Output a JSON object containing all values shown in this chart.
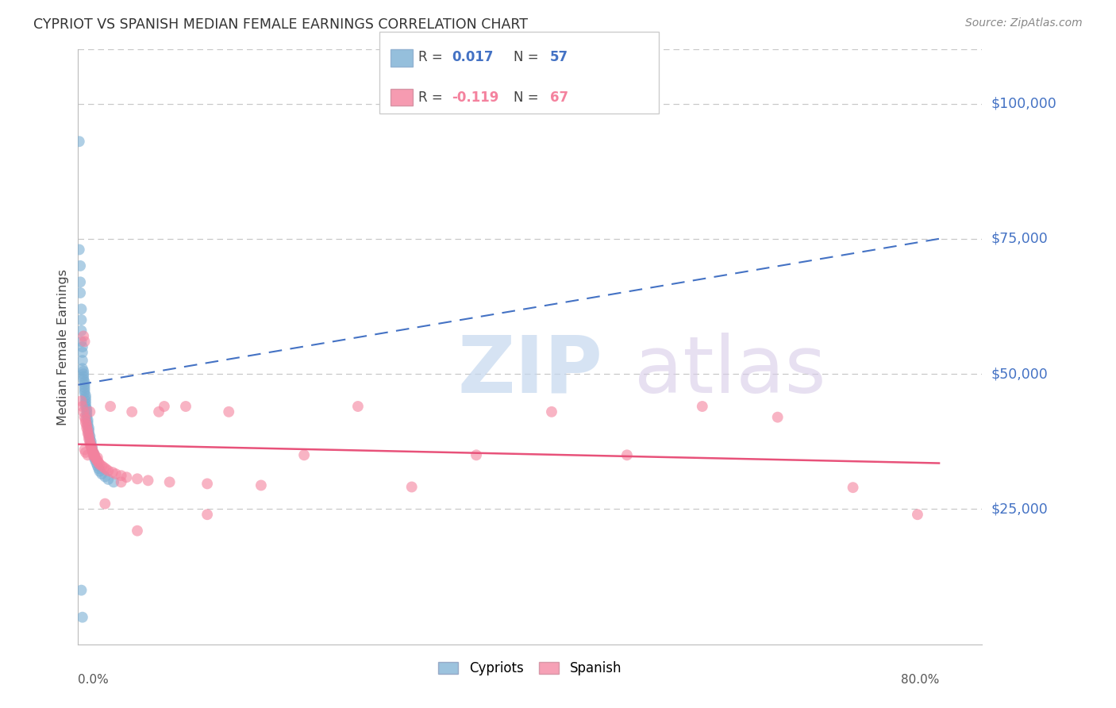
{
  "title": "CYPRIOT VS SPANISH MEDIAN FEMALE EARNINGS CORRELATION CHART",
  "source": "Source: ZipAtlas.com",
  "ylabel": "Median Female Earnings",
  "xlim": [
    0.0,
    0.84
  ],
  "ylim": [
    0,
    110000
  ],
  "x_tick_positions": [
    0.0,
    0.2,
    0.4,
    0.6,
    0.8
  ],
  "y_ticks": [
    25000,
    50000,
    75000,
    100000
  ],
  "y_tick_labels": [
    "$25,000",
    "$50,000",
    "$75,000",
    "$100,000"
  ],
  "y_tick_color": "#4472c4",
  "background_color": "#ffffff",
  "grid_color": "#c8c8c8",
  "cypriot_color": "#7bafd4",
  "spanish_color": "#f4829e",
  "scatter_size": 100,
  "cypriot_scatter_alpha": 0.6,
  "spanish_scatter_alpha": 0.6,
  "trend_blue_color": "#4472c4",
  "trend_pink_color": "#e8527a",
  "cypriot_R": 0.017,
  "cypriot_N": 57,
  "spanish_R": -0.119,
  "spanish_N": 67,
  "cyp_x": [
    0.001,
    0.001,
    0.002,
    0.002,
    0.002,
    0.003,
    0.003,
    0.003,
    0.003,
    0.004,
    0.004,
    0.004,
    0.004,
    0.005,
    0.005,
    0.005,
    0.005,
    0.006,
    0.006,
    0.006,
    0.006,
    0.006,
    0.007,
    0.007,
    0.007,
    0.007,
    0.007,
    0.008,
    0.008,
    0.008,
    0.008,
    0.009,
    0.009,
    0.009,
    0.01,
    0.01,
    0.01,
    0.011,
    0.011,
    0.012,
    0.012,
    0.013,
    0.013,
    0.014,
    0.015,
    0.015,
    0.016,
    0.017,
    0.018,
    0.019,
    0.02,
    0.022,
    0.025,
    0.028,
    0.033,
    0.003,
    0.004
  ],
  "cyp_y": [
    93000,
    73000,
    70000,
    67000,
    65000,
    62000,
    60000,
    58000,
    56000,
    55000,
    54000,
    52500,
    51000,
    50500,
    50000,
    49500,
    49000,
    48500,
    48000,
    47500,
    47000,
    46500,
    46000,
    45500,
    45000,
    44500,
    44000,
    43500,
    43000,
    42500,
    42000,
    41500,
    41000,
    40500,
    40000,
    39500,
    39000,
    38500,
    38000,
    37500,
    37000,
    36500,
    36000,
    35500,
    35000,
    34500,
    34000,
    33500,
    33000,
    32500,
    32000,
    31500,
    31000,
    30500,
    30000,
    10000,
    5000
  ],
  "spa_x": [
    0.003,
    0.004,
    0.005,
    0.005,
    0.006,
    0.006,
    0.007,
    0.007,
    0.008,
    0.008,
    0.009,
    0.009,
    0.01,
    0.01,
    0.011,
    0.011,
    0.012,
    0.012,
    0.013,
    0.013,
    0.014,
    0.015,
    0.015,
    0.016,
    0.017,
    0.018,
    0.019,
    0.02,
    0.022,
    0.024,
    0.026,
    0.028,
    0.03,
    0.032,
    0.035,
    0.04,
    0.045,
    0.05,
    0.055,
    0.065,
    0.075,
    0.085,
    0.1,
    0.12,
    0.14,
    0.17,
    0.21,
    0.26,
    0.31,
    0.37,
    0.44,
    0.51,
    0.58,
    0.65,
    0.72,
    0.78,
    0.006,
    0.007,
    0.009,
    0.011,
    0.014,
    0.018,
    0.025,
    0.04,
    0.055,
    0.08,
    0.12
  ],
  "spa_y": [
    45000,
    44000,
    57000,
    43000,
    56000,
    42000,
    41500,
    41000,
    40500,
    40000,
    39500,
    39000,
    38500,
    38000,
    37500,
    37000,
    36800,
    36500,
    36200,
    35900,
    35500,
    35200,
    34900,
    34500,
    34200,
    33900,
    33600,
    33300,
    33000,
    32700,
    32400,
    32100,
    44000,
    31800,
    31500,
    31200,
    30900,
    43000,
    30600,
    30300,
    43000,
    30000,
    44000,
    29700,
    43000,
    29400,
    35000,
    44000,
    29100,
    35000,
    43000,
    35000,
    44000,
    42000,
    29000,
    24000,
    36000,
    35500,
    35000,
    43000,
    35000,
    34500,
    26000,
    30000,
    21000,
    44000,
    24000
  ],
  "cyp_trend_x0": 0.0,
  "cyp_trend_y0": 48000,
  "cyp_trend_x1": 0.8,
  "cyp_trend_y1": 75000,
  "spa_trend_x0": 0.0,
  "spa_trend_y0": 37000,
  "spa_trend_x1": 0.8,
  "spa_trend_y1": 33500
}
